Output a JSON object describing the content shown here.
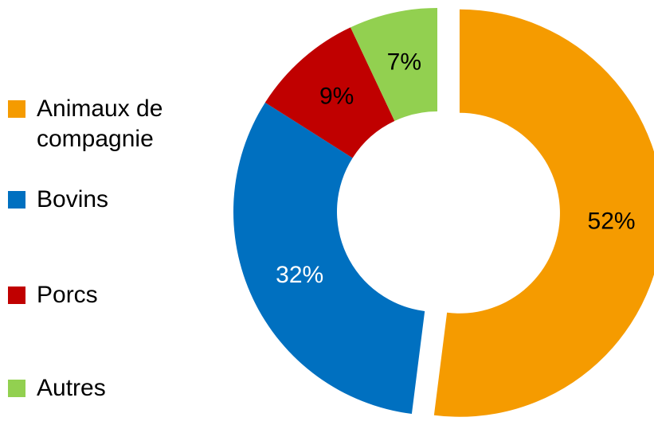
{
  "chart_data": {
    "type": "donut",
    "categories": [
      "Animaux de compagnie",
      "Bovins",
      "Porcs",
      "Autres"
    ],
    "values": [
      52,
      32,
      9,
      7
    ],
    "value_labels": [
      "52%",
      "32%",
      "9%",
      "7%"
    ],
    "colors": [
      "#f59b00",
      "#0070c0",
      "#c00000",
      "#92d050"
    ],
    "legend": "left"
  }
}
